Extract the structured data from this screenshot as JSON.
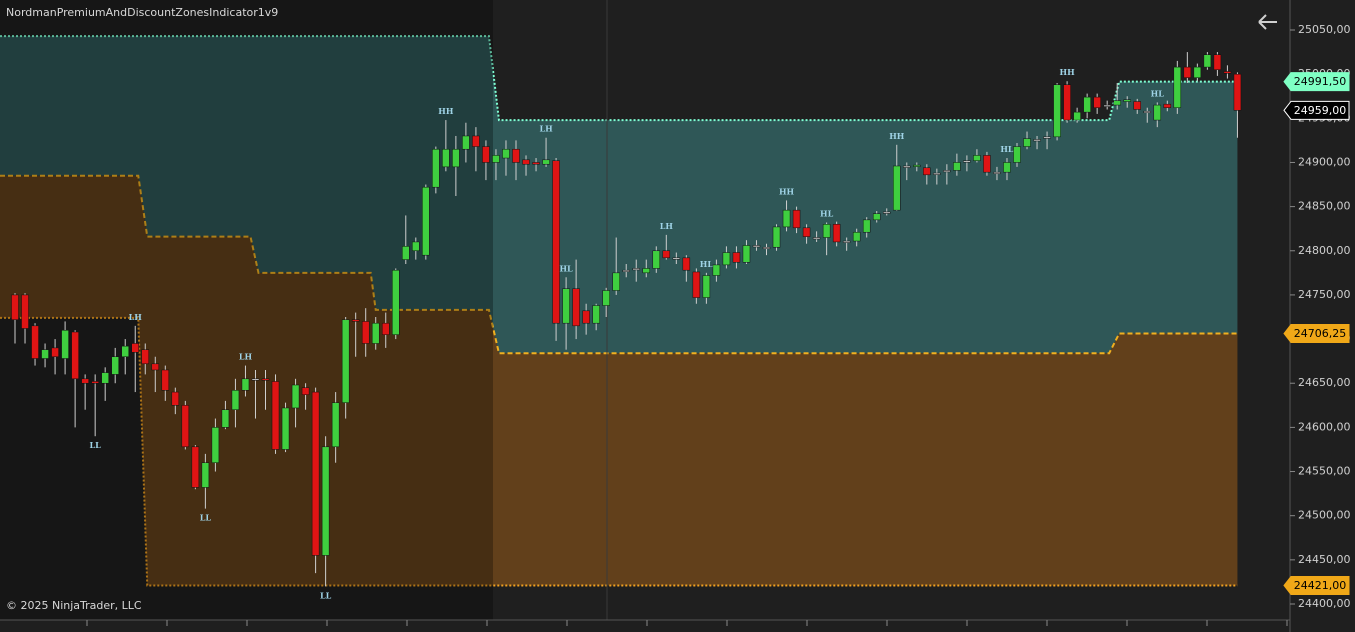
{
  "chart_data": {
    "type": "candlestick",
    "title": "NordmanPremiumAndDiscountZonesIndicator1v9",
    "footer": "© 2025 NinjaTrader, LLC",
    "up_color": "#3fcf3f",
    "down_color": "#e01414",
    "doji_color": "#c8c8c8",
    "ylim": [
      24400,
      25050
    ],
    "yticks": [
      {
        "value": 24400,
        "label": "24400,00"
      },
      {
        "value": 24450,
        "label": "24450,00"
      },
      {
        "value": 24500,
        "label": "24500,00"
      },
      {
        "value": 24550,
        "label": "24550,00"
      },
      {
        "value": 24600,
        "label": "24600,00"
      },
      {
        "value": 24650,
        "label": "24650,00"
      },
      {
        "value": 24700,
        "label": "24700,00"
      },
      {
        "value": 24750,
        "label": "24750,00"
      },
      {
        "value": 24800,
        "label": "24800,00"
      },
      {
        "value": 24850,
        "label": "24850,00"
      },
      {
        "value": 24900,
        "label": "24900,00"
      },
      {
        "value": 24950,
        "label": "24950,00"
      },
      {
        "value": 25000,
        "label": "25000,00"
      },
      {
        "value": 25050,
        "label": "25050,00"
      }
    ],
    "price_markers": [
      {
        "value": 24991.5,
        "label": "24991,50",
        "color": "#7fffc4"
      },
      {
        "value": 24959,
        "label": "24959,00",
        "color": "#ffffff"
      },
      {
        "value": 24706.25,
        "label": "24706,25",
        "color": "#f0a818"
      },
      {
        "value": 24421,
        "label": "24421,00",
        "color": "#f0a818"
      }
    ],
    "zones": {
      "x": [
        -1.5,
        12.3,
        13.2,
        23.5,
        24.3,
        35.5,
        36,
        47.3,
        48.3,
        109.2,
        110.2,
        122
      ],
      "top": [
        25043,
        25043,
        25043,
        25043,
        25043,
        25043,
        25043,
        25043,
        24948,
        24948,
        24991.5,
        24991.5
      ],
      "mid": [
        24885,
        24885,
        24816,
        24816,
        24775,
        24775,
        24733,
        24733,
        24684,
        24684,
        24706.25,
        24706.25
      ],
      "bottom": [
        24724,
        24724,
        24421,
        24421,
        24421,
        24421,
        24421,
        24421,
        24421,
        24421,
        24421,
        24421
      ],
      "premium_color": "#2f5757",
      "discount_color": "#62401b",
      "top_line_color": "#7fffd4",
      "mid_line_color": "#f0b020",
      "bottom_line_color": "#f0a020"
    },
    "open": [
      24750,
      24750,
      24715,
      24678,
      24690,
      24678,
      24708,
      24655,
      24652,
      24650,
      24660,
      24680,
      24695,
      24688,
      24672,
      24665,
      24640,
      24625,
      24578,
      24532,
      24560,
      24600,
      24620,
      24642,
      24655,
      24655,
      24652,
      24575,
      24622,
      24645,
      24640,
      24455,
      24578,
      24628,
      24722,
      24720,
      24695,
      24718,
      24705,
      24790,
      24800,
      24795,
      24872,
      24895,
      24895,
      24915,
      24930,
      24918,
      24900,
      24905,
      24915,
      24903,
      24900,
      24898,
      24902,
      24718,
      24757,
      24732,
      24718,
      24738,
      24755,
      24778,
      24780,
      24775,
      24780,
      24800,
      24792,
      24792,
      24776,
      24747,
      24772,
      24784,
      24798,
      24787,
      24806,
      24804,
      24804,
      24827,
      24846,
      24826,
      24815,
      24815,
      24830,
      24811,
      24811,
      24821,
      24835,
      24844,
      24846,
      24896,
      24896,
      24894,
      24888,
      24891,
      24891,
      24902,
      24902,
      24908,
      24889,
      24889,
      24900,
      24918,
      24926,
      24929,
      24929,
      24988,
      24948,
      24957,
      24974,
      24965,
      24965,
      24969,
      24969,
      24958,
      24948,
      24966,
      24962,
      25008,
      24996,
      25008,
      25022,
      25003,
      25000
    ],
    "high": [
      24752,
      24752,
      24718,
      24695,
      24700,
      24720,
      24710,
      24660,
      24660,
      24668,
      24690,
      24700,
      24715,
      24695,
      24680,
      24670,
      24645,
      24630,
      24580,
      24570,
      24610,
      24630,
      24655,
      24670,
      24665,
      24665,
      24660,
      24628,
      24655,
      24650,
      24645,
      24590,
      24640,
      24725,
      24730,
      24735,
      24725,
      24730,
      24780,
      24840,
      24815,
      24875,
      24918,
      24948,
      24930,
      24945,
      24940,
      24925,
      24915,
      24925,
      24925,
      24908,
      24905,
      24928,
      24905,
      24770,
      24790,
      24740,
      24740,
      24758,
      24815,
      24785,
      24790,
      24790,
      24805,
      24818,
      24798,
      24795,
      24780,
      24775,
      24790,
      24805,
      24805,
      24812,
      24812,
      24808,
      24830,
      24857,
      24850,
      24830,
      24822,
      24832,
      24833,
      24815,
      24825,
      24838,
      24845,
      24848,
      24920,
      24900,
      24900,
      24898,
      24893,
      24898,
      24910,
      24908,
      24915,
      24912,
      24895,
      24905,
      24922,
      24935,
      24930,
      24935,
      24990,
      24992,
      24962,
      24978,
      24978,
      24970,
      24990,
      24975,
      24972,
      24962,
      24968,
      24970,
      25015,
      25025,
      25012,
      25025,
      25025,
      25010,
      25002
    ],
    "low": [
      24695,
      24695,
      24670,
      24668,
      24660,
      24660,
      24600,
      24620,
      24590,
      24630,
      24650,
      24660,
      24640,
      24660,
      24640,
      24630,
      24615,
      24575,
      24530,
      24508,
      24550,
      24598,
      24600,
      24635,
      24610,
      24620,
      24570,
      24572,
      24600,
      24620,
      24435,
      24420,
      24560,
      24610,
      24680,
      24680,
      24688,
      24690,
      24700,
      24785,
      24790,
      24790,
      24865,
      24890,
      24862,
      24900,
      24890,
      24880,
      24880,
      24885,
      24880,
      24885,
      24890,
      24895,
      24698,
      24688,
      24700,
      24705,
      24710,
      24725,
      24750,
      24770,
      24765,
      24770,
      24775,
      24790,
      24785,
      24765,
      24740,
      24740,
      24765,
      24780,
      24780,
      24785,
      24800,
      24795,
      24800,
      24822,
      24820,
      24808,
      24810,
      24795,
      24805,
      24800,
      24805,
      24815,
      24832,
      24840,
      24845,
      24880,
      24890,
      24875,
      24875,
      24875,
      24885,
      24890,
      24900,
      24885,
      24880,
      24880,
      24895,
      24915,
      24915,
      24915,
      24925,
      24945,
      24945,
      24950,
      24955,
      24960,
      24960,
      24962,
      24955,
      24945,
      24940,
      24958,
      24955,
      24990,
      24992,
      25005,
      24998,
      24995,
      24928
    ],
    "close": [
      24722,
      24712,
      24678,
      24688,
      24680,
      24710,
      24655,
      24650,
      24650,
      24662,
      24680,
      24692,
      24685,
      24672,
      24665,
      24642,
      24625,
      24578,
      24532,
      24560,
      24600,
      24620,
      24642,
      24655,
      24655,
      24654,
      24575,
      24622,
      24648,
      24637,
      24455,
      24578,
      24628,
      24722,
      24720,
      24695,
      24718,
      24705,
      24778,
      24805,
      24810,
      24872,
      24915,
      24915,
      24915,
      24930,
      24918,
      24900,
      24908,
      24915,
      24900,
      24898,
      24898,
      24903,
      24718,
      24757,
      24715,
      24718,
      24738,
      24755,
      24775,
      24778,
      24780,
      24780,
      24800,
      24792,
      24792,
      24778,
      24747,
      24772,
      24784,
      24798,
      24787,
      24806,
      24806,
      24804,
      24827,
      24846,
      24826,
      24816,
      24815,
      24830,
      24810,
      24811,
      24821,
      24835,
      24842,
      24844,
      24896,
      24896,
      24897,
      24886,
      24888,
      24891,
      24900,
      24902,
      24908,
      24889,
      24889,
      24900,
      24918,
      24927,
      24926,
      24929,
      24988,
      24948,
      24957,
      24974,
      24962,
      24965,
      24970,
      24971,
      24960,
      24958,
      24965,
      24962,
      25008,
      24996,
      25008,
      25022,
      25005,
      25001,
      24959
    ],
    "swing_labels": [
      null,
      null,
      null,
      null,
      null,
      null,
      null,
      null,
      "LL",
      null,
      null,
      null,
      "LH",
      null,
      null,
      null,
      null,
      null,
      null,
      "LL",
      null,
      null,
      null,
      "LH",
      null,
      null,
      null,
      null,
      null,
      null,
      null,
      "LL",
      null,
      null,
      null,
      null,
      null,
      null,
      null,
      null,
      null,
      null,
      null,
      "HH",
      null,
      null,
      null,
      null,
      null,
      null,
      null,
      null,
      null,
      "LH",
      null,
      "HL",
      null,
      null,
      null,
      null,
      null,
      null,
      null,
      null,
      null,
      "LH",
      null,
      null,
      null,
      "HL",
      null,
      null,
      null,
      null,
      null,
      null,
      null,
      "HH",
      null,
      null,
      null,
      "HL",
      null,
      null,
      null,
      null,
      null,
      null,
      "HH",
      null,
      null,
      null,
      null,
      null,
      null,
      null,
      null,
      null,
      null,
      "HL",
      null,
      null,
      null,
      null,
      null,
      "HH",
      null,
      null,
      null,
      null,
      null,
      null,
      null,
      null,
      "HL",
      null,
      null,
      null,
      null,
      null,
      null,
      null,
      null
    ]
  }
}
